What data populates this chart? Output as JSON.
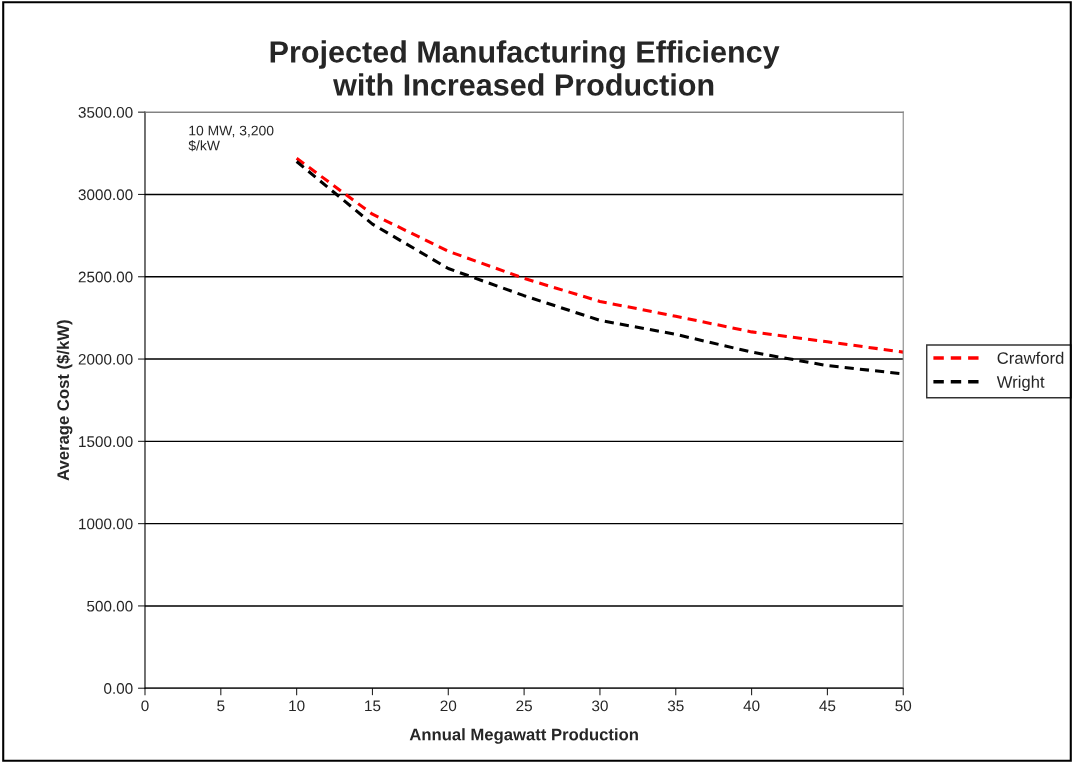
{
  "chart_data": {
    "type": "line",
    "title": "Projected Manufacturing Efficiency\nwith Increased Production",
    "xlabel": "Annual Megawatt Production",
    "ylabel": "Average Cost ($/kW)",
    "x": [
      10,
      15,
      20,
      25,
      30,
      35,
      40,
      45,
      50
    ],
    "series": [
      {
        "name": "Crawford",
        "color": "#ff0000",
        "values": [
          3220,
          2880,
          2655,
          2490,
          2350,
          2260,
          2165,
          2105,
          2042
        ]
      },
      {
        "name": "Wright",
        "color": "#000000",
        "values": [
          3200,
          2820,
          2550,
          2385,
          2235,
          2150,
          2042,
          1960,
          1910
        ]
      }
    ],
    "annotations": [
      {
        "text": "10 MW, 3,200\n$/kW",
        "x": 10,
        "y": 3200
      }
    ],
    "xlim": [
      0,
      50
    ],
    "xticks": [
      0,
      5,
      10,
      15,
      20,
      25,
      30,
      35,
      40,
      45,
      50
    ],
    "ylim": [
      0,
      3500
    ],
    "yticks": [
      {
        "value": 0,
        "label": "0.00"
      },
      {
        "value": 500,
        "label": "500.00"
      },
      {
        "value": 1000,
        "label": "1000.00"
      },
      {
        "value": 1500,
        "label": "1500.00"
      },
      {
        "value": 2000,
        "label": "2000.00"
      },
      {
        "value": 2500,
        "label": "2500.00"
      },
      {
        "value": 3000,
        "label": "3000.00"
      },
      {
        "value": 3500,
        "label": "3500.00"
      }
    ],
    "grid": "y",
    "legend": "right",
    "line_style": "dashed",
    "marker": "none"
  }
}
